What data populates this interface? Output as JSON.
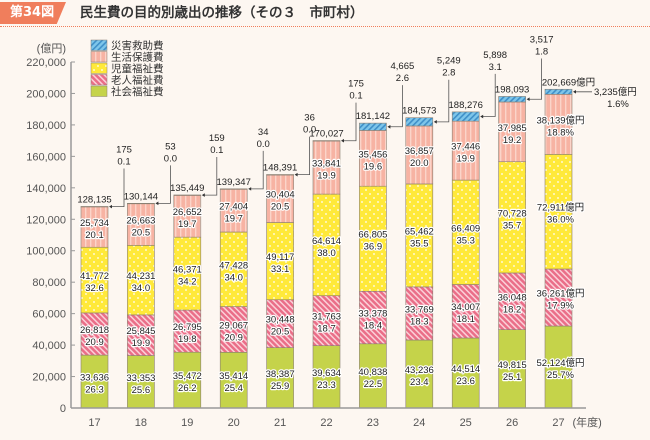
{
  "header": {
    "figure_label": "第34図",
    "title": "民生費の目的別歳出の推移（その３　市町村）"
  },
  "colors": {
    "badge": "#f07e5c",
    "disaster": "#7ec6ea",
    "livelihood": "#f7b3a3",
    "child": "#ffe93a",
    "elderly": "#ea6e88",
    "social": "#c5d34a"
  },
  "chart_data": {
    "type": "bar",
    "stacked": true,
    "title": "民生費の目的別歳出の推移（その３　市町村）",
    "ylabel": "(億円)",
    "xlabel_suffix": "(年度)",
    "ylim": [
      0,
      220000
    ],
    "yticks": [
      0,
      20000,
      40000,
      60000,
      80000,
      100000,
      120000,
      140000,
      160000,
      180000,
      200000,
      220000
    ],
    "ytick_labels": [
      "0",
      "20,000",
      "40,000",
      "60,000",
      "80,000",
      "100,000",
      "120,000",
      "140,000",
      "160,000",
      "180,000",
      "200,000",
      "220,000"
    ],
    "categories": [
      "17",
      "18",
      "19",
      "20",
      "21",
      "22",
      "23",
      "24",
      "25",
      "26",
      "27"
    ],
    "legend": [
      "災害救助費",
      "生活保護費",
      "児童福祉費",
      "老人福祉費",
      "社会福祉費"
    ],
    "legend_position": "top-left",
    "totals": [
      128135,
      130144,
      135449,
      139347,
      148391,
      170027,
      181142,
      184573,
      188276,
      198093,
      202669
    ],
    "total_labels": [
      "128,135",
      "130,144",
      "135,449",
      "139,347",
      "148,391",
      "170,027",
      "181,142",
      "184,573",
      "188,276",
      "198,093",
      "202,669億円"
    ],
    "series": [
      {
        "name": "社会福祉費",
        "key": "social",
        "values": [
          33636,
          33353,
          35472,
          35414,
          38387,
          39634,
          40838,
          43236,
          44514,
          49815,
          52124
        ],
        "labels": [
          "33,636",
          "33,353",
          "35,472",
          "35,414",
          "38,387",
          "39,634",
          "40,838",
          "43,236",
          "44,514",
          "49,815",
          "52,124億円"
        ],
        "shares": [
          "26.3",
          "25.6",
          "26.2",
          "25.4",
          "25.9",
          "23.3",
          "22.5",
          "23.4",
          "23.6",
          "25.1",
          "25.7%"
        ]
      },
      {
        "name": "老人福祉費",
        "key": "elderly",
        "values": [
          26818,
          25845,
          26795,
          29067,
          30448,
          31763,
          33378,
          33769,
          34007,
          36048,
          36261
        ],
        "labels": [
          "26,818",
          "25,845",
          "26,795",
          "29,067",
          "30,448",
          "31,763",
          "33,378",
          "33,769",
          "34,007",
          "36,048",
          "36,261億円"
        ],
        "shares": [
          "20.9",
          "19.9",
          "19.8",
          "20.9",
          "20.5",
          "18.7",
          "18.4",
          "18.3",
          "18.1",
          "18.2",
          "17.9%"
        ]
      },
      {
        "name": "児童福祉費",
        "key": "child",
        "values": [
          41772,
          44231,
          46371,
          47428,
          49117,
          64614,
          66805,
          65462,
          66409,
          70728,
          72911
        ],
        "labels": [
          "41,772",
          "44,231",
          "46,371",
          "47,428",
          "49,117",
          "64,614",
          "66,805",
          "65,462",
          "66,409",
          "70,728",
          "72,911億円"
        ],
        "shares": [
          "32.6",
          "34.0",
          "34.2",
          "34.0",
          "33.1",
          "38.0",
          "36.9",
          "35.5",
          "35.3",
          "35.7",
          "36.0%"
        ]
      },
      {
        "name": "生活保護費",
        "key": "livelihood",
        "values": [
          25734,
          26663,
          26652,
          27404,
          30404,
          33841,
          35456,
          36857,
          37446,
          37985,
          38139
        ],
        "labels": [
          "25,734",
          "26,663",
          "26,652",
          "27,404",
          "30,404",
          "33,841",
          "35,456",
          "36,857",
          "37,446",
          "37,985",
          "38,139億円"
        ],
        "shares": [
          "20.1",
          "20.5",
          "19.7",
          "19.7",
          "20.5",
          "19.9",
          "19.6",
          "20.0",
          "19.9",
          "19.2",
          "18.8%"
        ]
      },
      {
        "name": "災害救助費",
        "key": "disaster",
        "values": [
          175,
          53,
          159,
          34,
          36,
          175,
          4665,
          5249,
          5898,
          3517,
          3235
        ],
        "labels": [
          "175",
          "53",
          "159",
          "34",
          "36",
          "175",
          "4,665",
          "5,249",
          "5,898",
          "3,517",
          "3,235億円"
        ],
        "shares": [
          "0.1",
          "0.0",
          "0.1",
          "0.0",
          "0.0",
          "0.1",
          "2.6",
          "2.8",
          "3.1",
          "1.8",
          "1.6%"
        ]
      }
    ]
  }
}
